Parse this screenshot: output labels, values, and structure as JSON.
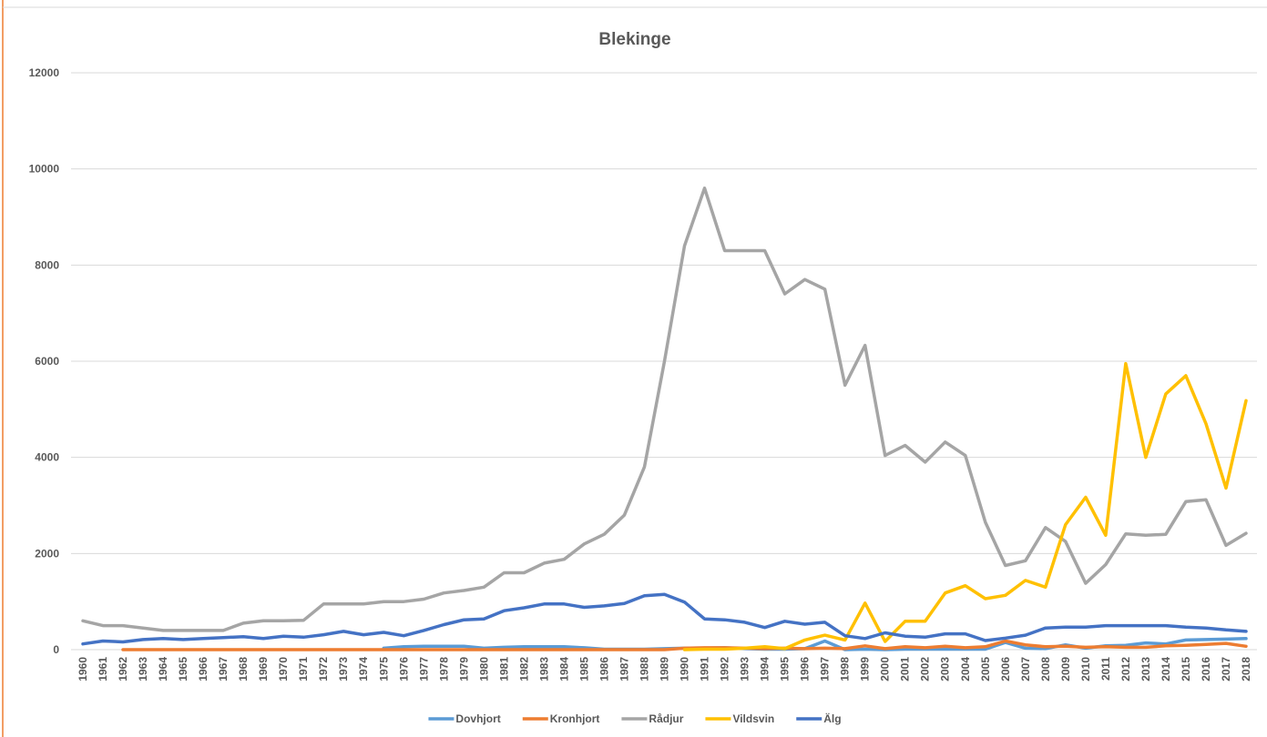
{
  "chart_data": {
    "type": "line",
    "title": "Blekinge",
    "categories": [
      "1960",
      "1961",
      "1962",
      "1963",
      "1964",
      "1965",
      "1966",
      "1967",
      "1968",
      "1969",
      "1970",
      "1971",
      "1972",
      "1973",
      "1974",
      "1975",
      "1976",
      "1977",
      "1978",
      "1979",
      "1980",
      "1981",
      "1982",
      "1983",
      "1984",
      "1985",
      "1986",
      "1987",
      "1988",
      "1989",
      "1990",
      "1991",
      "1992",
      "1993",
      "1994",
      "1995",
      "1996",
      "1997",
      "1998",
      "1999",
      "2000",
      "2001",
      "2002",
      "2003",
      "2004",
      "2005",
      "2006",
      "2007",
      "2008",
      "2009",
      "2010",
      "2011",
      "2012",
      "2013",
      "2014",
      "2015",
      "2016",
      "2017",
      "2018"
    ],
    "series": [
      {
        "name": "Dovhjort",
        "color": "#5b9bd5",
        "values": [
          null,
          null,
          null,
          null,
          null,
          null,
          null,
          null,
          null,
          null,
          null,
          null,
          null,
          null,
          null,
          30,
          60,
          70,
          70,
          70,
          30,
          50,
          60,
          60,
          60,
          40,
          10,
          10,
          10,
          20,
          30,
          30,
          40,
          20,
          10,
          10,
          20,
          180,
          0,
          10,
          0,
          10,
          10,
          10,
          10,
          10,
          150,
          30,
          20,
          100,
          30,
          80,
          90,
          140,
          120,
          200,
          210,
          220,
          230
        ]
      },
      {
        "name": "Kronhjort",
        "color": "#ed7d31",
        "values": [
          null,
          null,
          0,
          0,
          0,
          0,
          0,
          0,
          0,
          0,
          0,
          0,
          0,
          0,
          0,
          0,
          0,
          0,
          0,
          0,
          0,
          0,
          0,
          0,
          0,
          0,
          0,
          0,
          0,
          0,
          30,
          40,
          40,
          30,
          20,
          30,
          20,
          30,
          20,
          80,
          20,
          60,
          40,
          70,
          40,
          60,
          180,
          100,
          60,
          70,
          50,
          60,
          50,
          50,
          80,
          90,
          110,
          130,
          70
        ]
      },
      {
        "name": "Rådjur",
        "color": "#a5a5a5",
        "values": [
          600,
          500,
          500,
          450,
          400,
          400,
          400,
          400,
          550,
          600,
          600,
          610,
          950,
          950,
          950,
          1000,
          1000,
          1050,
          1180,
          1230,
          1300,
          1600,
          1600,
          1800,
          1880,
          2200,
          2400,
          2800,
          3800,
          6000,
          8400,
          9600,
          8300,
          8300,
          8300,
          7400,
          7700,
          7500,
          5500,
          6330,
          4040,
          4250,
          3900,
          4320,
          4040,
          2650,
          1750,
          1850,
          2540,
          2250,
          1380,
          1770,
          2410,
          2380,
          2400,
          3080,
          3120,
          2170,
          2420
        ]
      },
      {
        "name": "Vildsvin",
        "color": "#ffc000",
        "values": [
          null,
          null,
          null,
          null,
          null,
          null,
          null,
          null,
          null,
          null,
          null,
          null,
          null,
          null,
          null,
          null,
          null,
          null,
          null,
          null,
          null,
          null,
          null,
          null,
          null,
          null,
          null,
          null,
          null,
          null,
          0,
          10,
          10,
          30,
          60,
          20,
          200,
          300,
          200,
          970,
          170,
          590,
          590,
          1180,
          1330,
          1060,
          1130,
          1440,
          1300,
          2600,
          3170,
          2380,
          5950,
          4000,
          5320,
          5700,
          4700,
          3360,
          5180
        ]
      },
      {
        "name": "Älg",
        "color": "#4472c4",
        "values": [
          120,
          180,
          160,
          210,
          230,
          210,
          230,
          250,
          270,
          230,
          280,
          260,
          310,
          380,
          310,
          360,
          290,
          400,
          520,
          620,
          640,
          810,
          870,
          950,
          950,
          880,
          910,
          960,
          1120,
          1150,
          990,
          640,
          620,
          570,
          460,
          590,
          530,
          570,
          290,
          230,
          350,
          280,
          260,
          330,
          330,
          190,
          240,
          300,
          450,
          470,
          470,
          500,
          500,
          500,
          500,
          470,
          450,
          410,
          380
        ]
      }
    ],
    "ylim": [
      0,
      12000
    ],
    "yticks": [
      0,
      2000,
      4000,
      6000,
      8000,
      10000,
      12000
    ],
    "grid": true,
    "legend": "bottom"
  }
}
